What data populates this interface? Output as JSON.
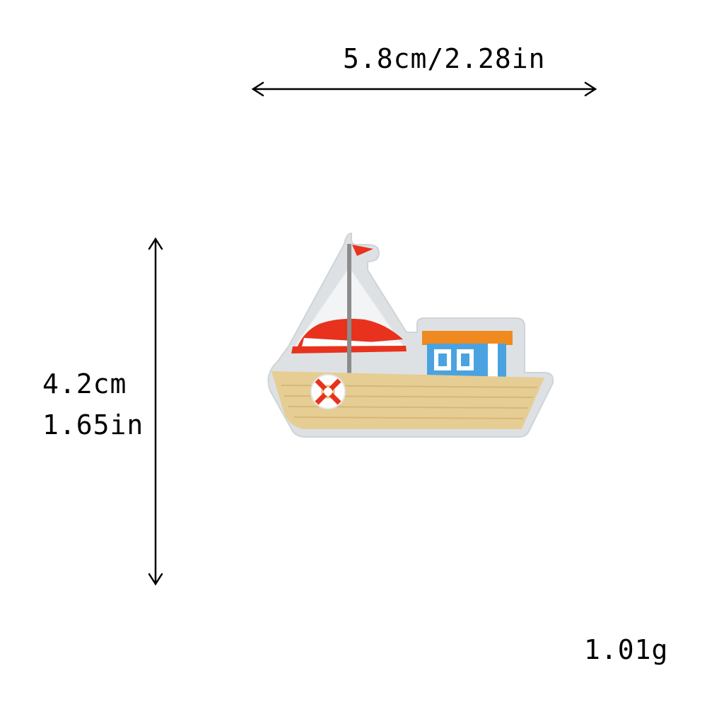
{
  "dimensions": {
    "width_label": "5.8cm/2.28in",
    "height_cm": "4.2cm",
    "height_in": "1.65in"
  },
  "weight": "1.01g",
  "product": {
    "icon": "sailboat-patch-icon",
    "colors": {
      "patch_background": "#dde1e4",
      "hull": "#e6cd93",
      "sail_red": "#e8321e",
      "cabin_blue": "#4aa3e0",
      "roof_orange": "#f08a1f",
      "mast_gray": "#8c8c8c"
    }
  }
}
